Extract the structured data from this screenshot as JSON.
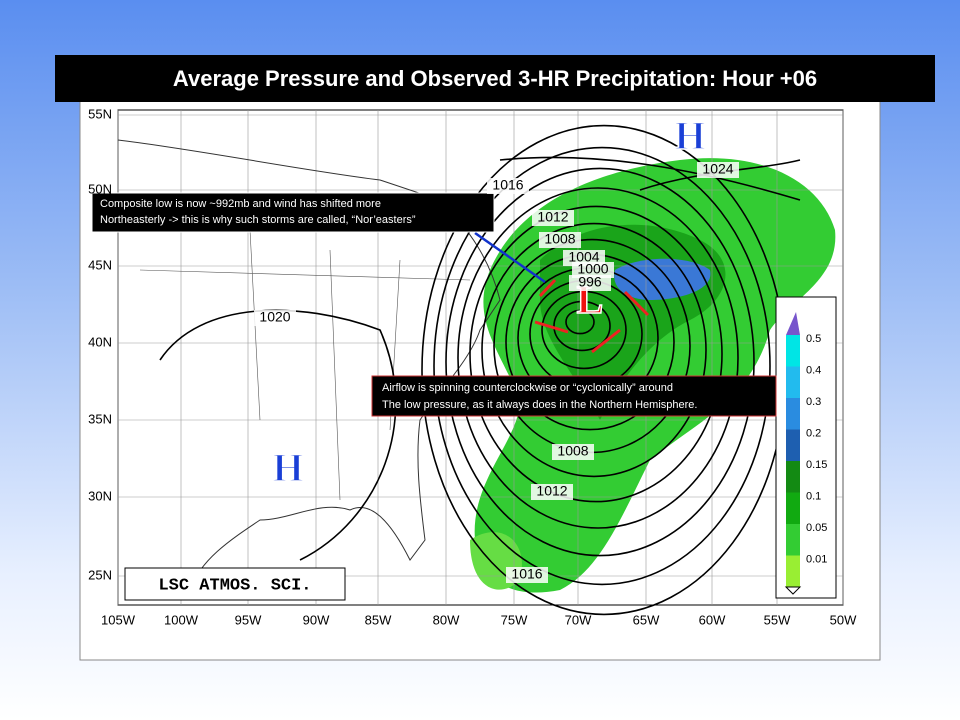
{
  "header": {
    "title": "Average Pressure and Observed 3-HR Precipitation: Hour +06"
  },
  "map": {
    "lat_labels": [
      "55N",
      "50N",
      "45N",
      "40N",
      "35N",
      "30N",
      "25N"
    ],
    "lon_labels": [
      "105W",
      "100W",
      "95W",
      "90W",
      "85W",
      "80W",
      "75W",
      "70W",
      "65W",
      "60W",
      "55W",
      "50W"
    ],
    "isobar_labels": [
      "1024",
      "1016",
      "1012",
      "1008",
      "1004",
      "1000",
      "996",
      "1020",
      "1008",
      "1012",
      "1016"
    ],
    "high_labels": [
      "H",
      "H"
    ],
    "low_label": "L",
    "credit": "LSC ATMOS. SCI."
  },
  "legend": {
    "labels": [
      "0.5",
      "0.4",
      "0.3",
      "0.2",
      "0.15",
      "0.1",
      "0.05",
      "0.01"
    ]
  },
  "annotations": [
    {
      "lines": [
        "Composite low is now ~992mb and wind has shifted more",
        "Northeasterly -> this is why such storms are called, “Nor’easters”"
      ]
    },
    {
      "lines": [
        "Airflow is spinning counterclockwise or “cyclonically” around",
        "The low pressure, as it always does in the Northern Hemisphere."
      ]
    }
  ]
}
